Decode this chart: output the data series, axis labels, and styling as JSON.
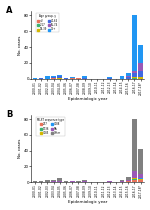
{
  "years": [
    "2000-01",
    "2001-02",
    "2002-03",
    "2003-04",
    "2004-05",
    "2005-06",
    "2006-07",
    "2007-08",
    "2008-09",
    "2009-10",
    "2010-11",
    "2011-12",
    "2012-13",
    "2013-14",
    "2014-15",
    "2015-16",
    "2016-17",
    "2017-18*"
  ],
  "panel_A": {
    "title": "A",
    "ylabel": "No. cases",
    "xlabel": "Epidemiologic year",
    "legend_title": "Age group, y",
    "age_groups": [
      "<2",
      "2-17",
      "18-39",
      "40-64",
      "65-74",
      "75+"
    ],
    "colors": [
      "#e8735a",
      "#3cb371",
      "#d4b800",
      "#4169e1",
      "#9b59b6",
      "#2196f3"
    ],
    "data": {
      "<2": [
        0,
        0,
        0,
        1,
        0,
        0,
        1,
        1,
        0,
        0,
        0,
        0,
        0,
        0,
        0,
        0,
        0,
        0
      ],
      "2-17": [
        0,
        0,
        0,
        0,
        0,
        0,
        0,
        0,
        0,
        0,
        0,
        0,
        0,
        0,
        0,
        0,
        1,
        0
      ],
      "18-39": [
        0,
        0,
        0,
        0,
        1,
        0,
        0,
        0,
        0,
        0,
        0,
        0,
        0,
        0,
        0,
        0,
        1,
        2
      ],
      "40-64": [
        0,
        1,
        0,
        1,
        2,
        1,
        0,
        0,
        1,
        0,
        0,
        0,
        1,
        0,
        0,
        2,
        5,
        8
      ],
      "65-74": [
        0,
        0,
        0,
        0,
        0,
        0,
        0,
        0,
        0,
        0,
        0,
        0,
        0,
        0,
        0,
        1,
        3,
        10
      ],
      "75+": [
        1,
        0,
        3,
        1,
        2,
        0,
        1,
        0,
        2,
        0,
        0,
        0,
        1,
        0,
        3,
        4,
        70,
        22
      ]
    },
    "ylim": [
      0,
      85
    ]
  },
  "panel_B": {
    "title": "B",
    "ylabel": "No. cases",
    "xlabel": "Epidemiologic year",
    "legend_title": "MLST sequence type",
    "seq_types": [
      "277",
      "1736",
      "3085",
      "3088",
      "NA",
      "Other"
    ],
    "colors": [
      "#e8735a",
      "#3cb371",
      "#d4b800",
      "#2196f3",
      "#9b59b6",
      "#808080"
    ],
    "data": {
      "277": [
        0,
        0,
        0,
        0,
        0,
        0,
        0,
        0,
        0,
        0,
        0,
        0,
        0,
        0,
        0,
        1,
        3,
        3
      ],
      "1736": [
        0,
        0,
        0,
        0,
        0,
        0,
        0,
        0,
        0,
        0,
        0,
        0,
        0,
        0,
        0,
        0,
        1,
        0
      ],
      "3085": [
        0,
        0,
        0,
        0,
        0,
        0,
        0,
        0,
        0,
        0,
        0,
        0,
        0,
        0,
        0,
        0,
        2,
        1
      ],
      "3088": [
        0,
        0,
        0,
        0,
        0,
        0,
        0,
        0,
        0,
        0,
        0,
        0,
        0,
        0,
        0,
        0,
        0,
        1
      ],
      "NA": [
        0,
        0,
        0,
        1,
        1,
        0,
        1,
        0,
        1,
        0,
        0,
        0,
        1,
        0,
        1,
        2,
        8,
        6
      ],
      "Other": [
        1,
        1,
        3,
        2,
        4,
        1,
        1,
        1,
        2,
        0,
        0,
        0,
        1,
        0,
        2,
        4,
        66,
        31
      ]
    },
    "ylim": [
      0,
      85
    ]
  },
  "bg_color": "#ffffff"
}
